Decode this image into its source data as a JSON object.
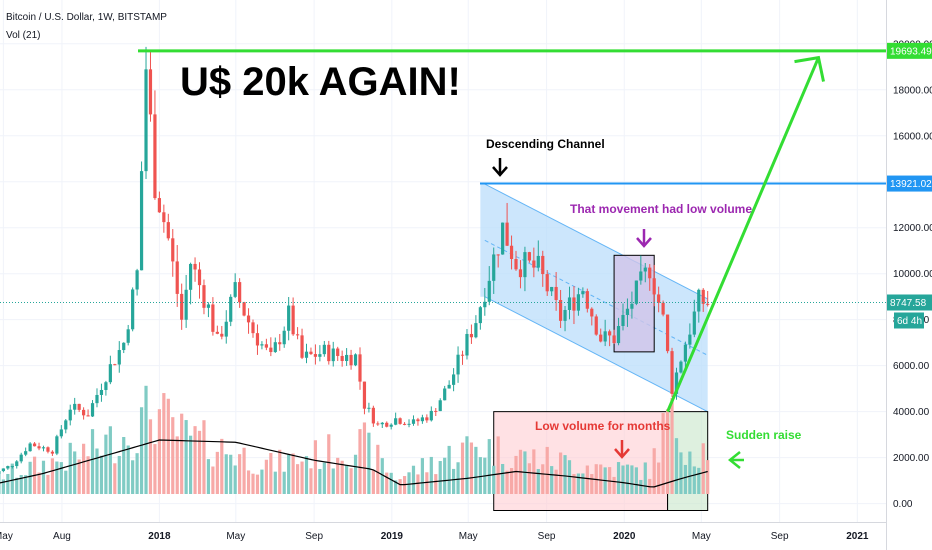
{
  "header": {
    "symbol": "Bitcoin / U.S. Dollar, 1W, BITSTAMP",
    "indicator": "Vol (21)"
  },
  "price_tags": {
    "top": "19693.49",
    "resistance": "13921.02",
    "last": "8747.58",
    "countdown": "6d 4h"
  },
  "annotations": {
    "headline": "U$ 20k AGAIN!",
    "channel": "Descending Channel",
    "low_volume_movement": "That movement had low volume",
    "low_volume_months": "Low volume for months",
    "sudden_raise": "Sudden raise"
  },
  "colors": {
    "up": "#26a69a",
    "down": "#ef5350",
    "up_volume": "#80cbc4",
    "down_volume": "#f7a9a7",
    "headline_line": "#33dd33",
    "resistance_line": "#2196f3",
    "channel_fill": "#bbdefb",
    "annotation_purple": "#9c27b0",
    "annotation_red": "#e53935",
    "annotation_green": "#33dd33"
  },
  "chart_data": {
    "type": "candlestick",
    "interval": "1W",
    "y_range": [
      -500,
      20500
    ],
    "y_ticks": [
      0,
      2000,
      4000,
      6000,
      8000,
      10000,
      12000,
      14000,
      16000,
      18000,
      20000
    ],
    "y_tick_labels": [
      "0.00",
      "2000.00",
      "4000.00",
      "6000.00",
      "8000.00",
      "10000.00",
      "12000.00",
      "14000.00",
      "16000.00",
      "18000.00",
      "20000.00"
    ],
    "x_range": [
      "2017-04-10",
      "2021-02-15"
    ],
    "x_ticks": [
      {
        "label": "May",
        "date": "2017-05-01"
      },
      {
        "label": "Aug",
        "date": "2017-08-01"
      },
      {
        "label": "2018",
        "date": "2018-01-01",
        "bold": true
      },
      {
        "label": "May",
        "date": "2018-05-01"
      },
      {
        "label": "Sep",
        "date": "2018-09-01"
      },
      {
        "label": "2019",
        "date": "2019-01-01",
        "bold": true
      },
      {
        "label": "May",
        "date": "2019-05-01"
      },
      {
        "label": "Sep",
        "date": "2019-09-01"
      },
      {
        "label": "2020",
        "date": "2020-01-01",
        "bold": true
      },
      {
        "label": "May",
        "date": "2020-05-01"
      },
      {
        "label": "Sep",
        "date": "2020-09-01"
      },
      {
        "label": "2021",
        "date": "2021-01-01",
        "bold": true
      }
    ],
    "close_path": [
      [
        "2017-04-10",
        1200
      ],
      [
        "2017-05-15",
        1700
      ],
      [
        "2017-06-12",
        2600
      ],
      [
        "2017-07-17",
        2300
      ],
      [
        "2017-08-14",
        4200
      ],
      [
        "2017-09-11",
        3900
      ],
      [
        "2017-10-09",
        5600
      ],
      [
        "2017-11-06",
        7000
      ],
      [
        "2017-11-27",
        10000
      ],
      [
        "2017-12-11",
        19000
      ],
      [
        "2017-12-25",
        14000
      ],
      [
        "2018-01-15",
        11500
      ],
      [
        "2018-02-05",
        8000
      ],
      [
        "2018-02-19",
        10500
      ],
      [
        "2018-03-19",
        8500
      ],
      [
        "2018-04-02",
        7000
      ],
      [
        "2018-04-30",
        9200
      ],
      [
        "2018-05-28",
        7500
      ],
      [
        "2018-06-25",
        6300
      ],
      [
        "2018-07-23",
        8200
      ],
      [
        "2018-08-13",
        6300
      ],
      [
        "2018-09-17",
        6600
      ],
      [
        "2018-10-15",
        6400
      ],
      [
        "2018-11-05",
        6400
      ],
      [
        "2018-11-19",
        4300
      ],
      [
        "2018-12-10",
        3400
      ],
      [
        "2019-01-07",
        3700
      ],
      [
        "2019-02-04",
        3500
      ],
      [
        "2019-03-04",
        3900
      ],
      [
        "2019-04-01",
        5200
      ],
      [
        "2019-05-13",
        8000
      ],
      [
        "2019-06-24",
        12000
      ],
      [
        "2019-07-15",
        10500
      ],
      [
        "2019-08-19",
        10200
      ],
      [
        "2019-09-23",
        8100
      ],
      [
        "2019-10-28",
        9400
      ],
      [
        "2019-11-25",
        7200
      ],
      [
        "2019-12-16",
        7200
      ],
      [
        "2020-01-13",
        8800
      ],
      [
        "2020-02-10",
        10300
      ],
      [
        "2020-03-02",
        8000
      ],
      [
        "2020-03-16",
        5000
      ],
      [
        "2020-04-06",
        7000
      ],
      [
        "2020-04-27",
        8800
      ],
      [
        "2020-05-11",
        8747.58
      ]
    ],
    "volume_profile": [
      [
        "2017-04-10",
        700
      ],
      [
        "2017-08-14",
        1600
      ],
      [
        "2017-11-27",
        2800
      ],
      [
        "2017-12-18",
        3800
      ],
      [
        "2018-02-05",
        2600
      ],
      [
        "2018-06-25",
        1300
      ],
      [
        "2018-11-19",
        2200
      ],
      [
        "2019-01-07",
        700
      ],
      [
        "2019-05-13",
        2200
      ],
      [
        "2019-07-15",
        1700
      ],
      [
        "2019-11-25",
        1200
      ],
      [
        "2020-02-10",
        1000
      ],
      [
        "2020-03-09",
        3400
      ],
      [
        "2020-04-20",
        1800
      ],
      [
        "2020-05-11",
        2100
      ]
    ],
    "volume_ma": [
      [
        "2017-04-10",
        400
      ],
      [
        "2017-07-01",
        900
      ],
      [
        "2017-11-01",
        1900
      ],
      [
        "2018-01-01",
        2400
      ],
      [
        "2018-05-01",
        2300
      ],
      [
        "2018-09-01",
        1500
      ],
      [
        "2018-12-01",
        1100
      ],
      [
        "2019-01-15",
        400
      ],
      [
        "2019-05-01",
        700
      ],
      [
        "2019-07-15",
        1000
      ],
      [
        "2019-10-01",
        800
      ],
      [
        "2020-01-01",
        500
      ],
      [
        "2020-02-15",
        300
      ],
      [
        "2020-04-01",
        700
      ],
      [
        "2020-05-11",
        1000
      ]
    ],
    "levels": {
      "top_line": 19693.49,
      "resistance": 13921.02,
      "last_price": 8747.58
    },
    "channel": {
      "upper": [
        [
          "2019-05-27",
          13900
        ],
        [
          "2020-05-11",
          8900
        ]
      ],
      "lower": [
        [
          "2019-05-27",
          9000
        ],
        [
          "2020-05-11",
          4000
        ]
      ],
      "start": "2019-05-20",
      "end": "2020-05-11",
      "fill_bottom": 4000
    },
    "boxes": [
      {
        "name": "low-volume-movement",
        "x0": "2019-12-16",
        "x1": "2020-02-17",
        "y0": 6600,
        "y1": 10800
      },
      {
        "name": "low-volume-months",
        "x0": "2019-06-10",
        "x1": "2020-03-09",
        "y0": -300,
        "y1": 4000
      },
      {
        "name": "sudden-raise",
        "x0": "2020-03-09",
        "x1": "2020-05-11",
        "y0": -300,
        "y1": 4000
      }
    ],
    "projection": [
      [
        "2020-03-09",
        4000
      ],
      [
        "2020-11-01",
        19400
      ]
    ]
  }
}
